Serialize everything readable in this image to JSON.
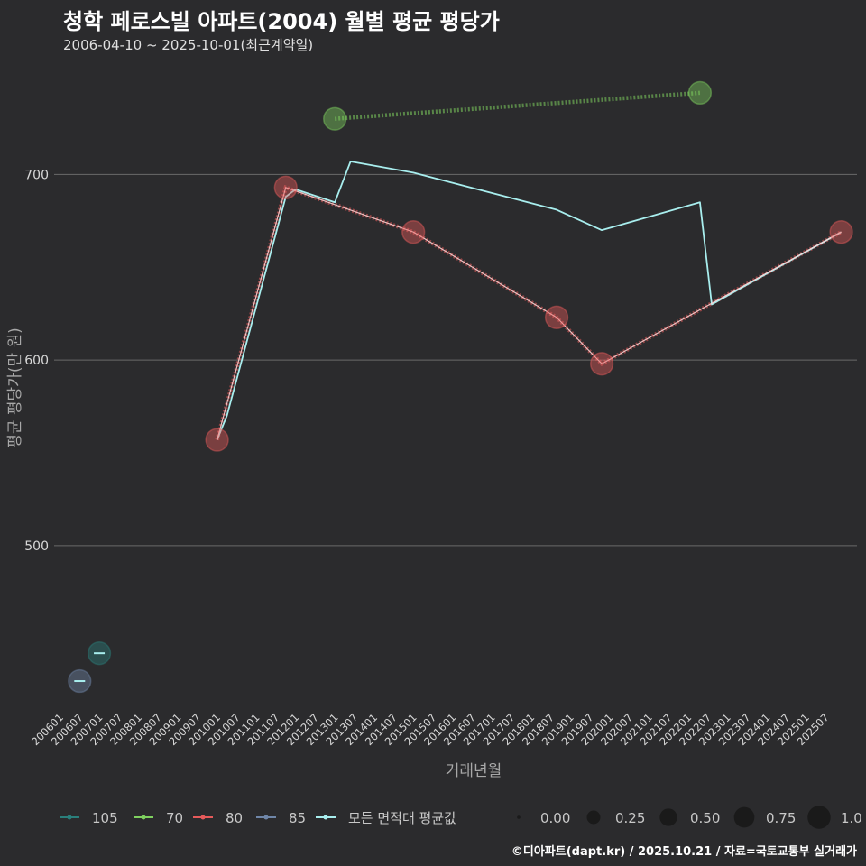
{
  "title": "청학 페로스빌 아파트(2004) 월별 평균 평당가",
  "subtitle": "2006-04-10 ~ 2025-10-01(최근계약일)",
  "caption": "©디아파트(dapt.kr) / 2025.10.21 / 자료=국토교통부 실거래가",
  "colors": {
    "background": "#2b2b2d",
    "grid": "#6a6a6a",
    "series_105": "#2a7f7b",
    "series_70": "#7fd15f",
    "series_80": "#e65a5a",
    "series_85": "#6f86a8",
    "series_all": "#a8eeee"
  },
  "chart_data": {
    "type": "line",
    "xlabel": "거래년월",
    "ylabel": "평균 평당가(만 원)",
    "ylim": [
      410,
      760
    ],
    "yticks": [
      500,
      600,
      700
    ],
    "xlim": [
      2005.75,
      2026.2
    ],
    "xticks": [
      "200601",
      "200607",
      "200701",
      "200707",
      "200801",
      "200807",
      "200901",
      "200907",
      "201001",
      "201007",
      "201101",
      "201107",
      "201201",
      "201207",
      "201301",
      "201307",
      "201401",
      "201407",
      "201501",
      "201507",
      "201601",
      "201607",
      "201701",
      "201707",
      "201801",
      "201807",
      "201901",
      "201907",
      "202001",
      "202007",
      "202101",
      "202107",
      "202201",
      "202207",
      "202301",
      "202307",
      "202401",
      "202407",
      "202501",
      "202507"
    ],
    "grid": "horizontal",
    "series": [
      {
        "name": "105",
        "color": "#2a7f7b",
        "points": [
          {
            "x": 2006.9,
            "y": 442,
            "size": 0.45
          }
        ]
      },
      {
        "name": "70",
        "color": "#7fd15f",
        "points": [
          {
            "x": 2012.9,
            "y": 730,
            "size": 0.45
          },
          {
            "x": 2022.2,
            "y": 744,
            "size": 0.45
          }
        ]
      },
      {
        "name": "80",
        "color": "#e65a5a",
        "points": [
          {
            "x": 2009.9,
            "y": 557,
            "size": 0.45
          },
          {
            "x": 2011.65,
            "y": 693,
            "size": 0.45
          },
          {
            "x": 2014.9,
            "y": 669,
            "size": 0.45
          },
          {
            "x": 2018.55,
            "y": 623,
            "size": 0.45
          },
          {
            "x": 2019.7,
            "y": 598,
            "size": 0.45
          },
          {
            "x": 2025.8,
            "y": 669,
            "size": 0.45
          }
        ]
      },
      {
        "name": "85",
        "color": "#6f86a8",
        "points": [
          {
            "x": 2006.4,
            "y": 427,
            "size": 0.45
          }
        ]
      },
      {
        "name": "모든 면적대 평균값",
        "color": "#a8eeee",
        "points": [
          {
            "x": 2009.9,
            "y": 557
          },
          {
            "x": 2010.15,
            "y": 570
          },
          {
            "x": 2011.65,
            "y": 688
          },
          {
            "x": 2011.9,
            "y": 692
          },
          {
            "x": 2012.9,
            "y": 685
          },
          {
            "x": 2013.3,
            "y": 707
          },
          {
            "x": 2014.9,
            "y": 701
          },
          {
            "x": 2018.55,
            "y": 681
          },
          {
            "x": 2019.7,
            "y": 670
          },
          {
            "x": 2022.2,
            "y": 685
          },
          {
            "x": 2022.5,
            "y": 630
          },
          {
            "x": 2025.8,
            "y": 669
          }
        ]
      }
    ],
    "legend": {
      "position": "bottom",
      "series_labels": [
        "105",
        "70",
        "80",
        "85",
        "모든 면적대 평균값"
      ],
      "size_labels": [
        "0.00",
        "0.25",
        "0.50",
        "0.75",
        "1.0"
      ],
      "size_values": [
        0,
        0.25,
        0.5,
        0.75,
        1.0
      ]
    }
  }
}
